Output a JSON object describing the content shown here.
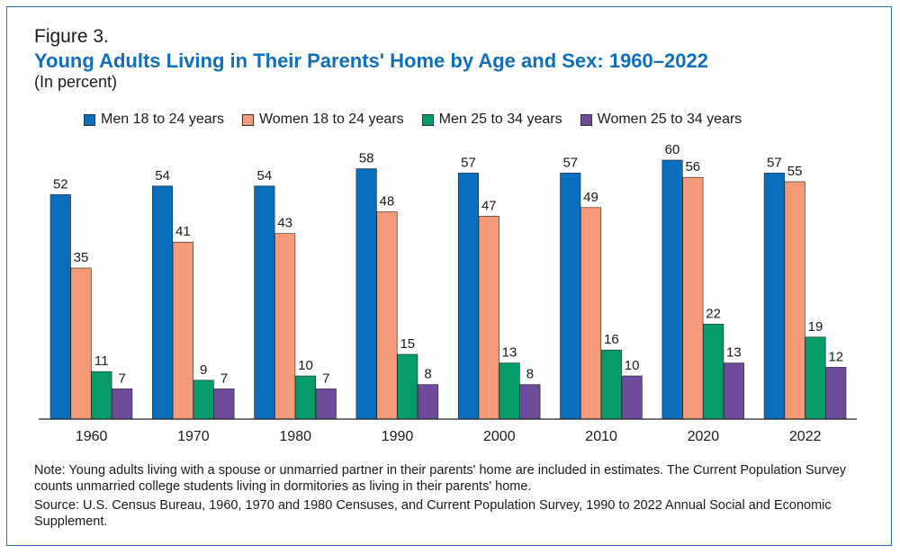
{
  "figure": {
    "label": "Figure 3.",
    "title": "Young Adults Living in Their Parents' Home by Age and Sex: 1960–2022",
    "subtitle": "(In percent)",
    "note": "Note: Young adults living with a spouse or unmarried partner in their parents' home are included in estimates. The Current Population Survey counts unmarried college students living in dormitories as living in their parents' home.",
    "source": "Source: U.S. Census Bureau, 1960, 1970 and 1980 Censuses, and Current Population Survey, 1990 to 2022 Annual Social and Economic Supplement."
  },
  "chart_data": {
    "type": "bar",
    "title": "Young Adults Living in Their Parents' Home by Age and Sex: 1960–2022",
    "subtitle": "(In percent)",
    "xlabel": "",
    "ylabel": "",
    "ylim": [
      0,
      60
    ],
    "grid": false,
    "legend_position": "top",
    "categories": [
      "1960",
      "1970",
      "1980",
      "1990",
      "2000",
      "2010",
      "2020",
      "2022"
    ],
    "series": [
      {
        "name": "Men 18 to 24 years",
        "color": "#0a6ebd",
        "values": [
          52,
          54,
          54,
          58,
          57,
          57,
          60,
          57
        ]
      },
      {
        "name": "Women 18 to 24 years",
        "color": "#f49a78",
        "values": [
          35,
          41,
          43,
          48,
          47,
          49,
          56,
          55
        ]
      },
      {
        "name": "Men 25 to 34 years",
        "color": "#079a6a",
        "values": [
          11,
          9,
          10,
          15,
          13,
          16,
          22,
          19
        ]
      },
      {
        "name": "Women 25 to 34 years",
        "color": "#6e4c9c",
        "values": [
          7,
          7,
          7,
          8,
          8,
          10,
          13,
          12
        ]
      }
    ]
  }
}
